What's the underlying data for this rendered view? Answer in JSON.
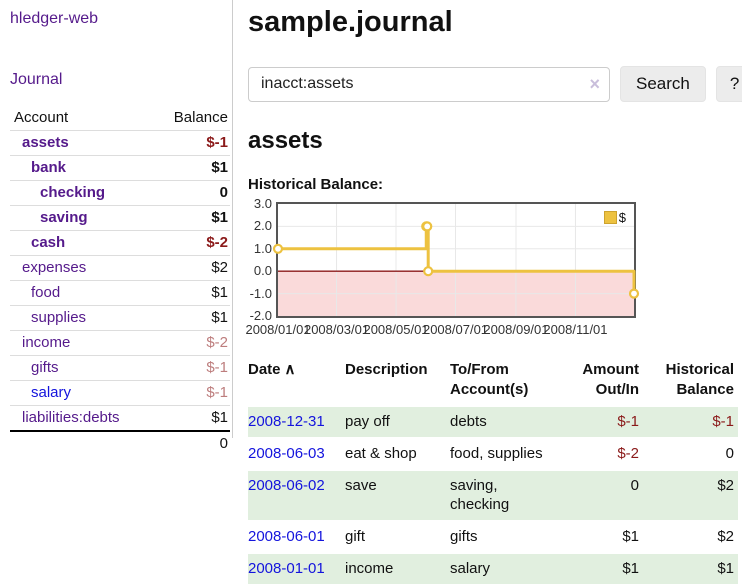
{
  "app": {
    "title": "hledger-web"
  },
  "sidebar": {
    "journal_label": "Journal",
    "accounts_header": {
      "account": "Account",
      "balance": "Balance"
    },
    "accounts": [
      {
        "name": "assets",
        "balance": "$-1",
        "depth": 0,
        "bold": true,
        "amount_class": "neg-strong",
        "link_color": "purple"
      },
      {
        "name": "bank",
        "balance": "$1",
        "depth": 1,
        "bold": true,
        "amount_class": "",
        "link_color": "purple"
      },
      {
        "name": "checking",
        "balance": "0",
        "depth": 2,
        "bold": true,
        "amount_class": "",
        "link_color": "purple"
      },
      {
        "name": "saving",
        "balance": "$1",
        "depth": 2,
        "bold": true,
        "amount_class": "",
        "link_color": "purple"
      },
      {
        "name": "cash",
        "balance": "$-2",
        "depth": 1,
        "bold": true,
        "amount_class": "neg-strong",
        "link_color": "purple"
      },
      {
        "name": "expenses",
        "balance": "$2",
        "depth": 0,
        "bold": false,
        "amount_class": "",
        "link_color": "purple"
      },
      {
        "name": "food",
        "balance": "$1",
        "depth": 1,
        "bold": false,
        "amount_class": "",
        "link_color": "purple"
      },
      {
        "name": "supplies",
        "balance": "$1",
        "depth": 1,
        "bold": false,
        "amount_class": "",
        "link_color": "purple"
      },
      {
        "name": "income",
        "balance": "$-2",
        "depth": 0,
        "bold": false,
        "amount_class": "neg-soft",
        "link_color": "purple"
      },
      {
        "name": "gifts",
        "balance": "$-1",
        "depth": 1,
        "bold": false,
        "amount_class": "neg-soft",
        "link_color": "purple"
      },
      {
        "name": "salary",
        "balance": "$-1",
        "depth": 1,
        "bold": false,
        "amount_class": "neg-soft",
        "link_color": "blue"
      },
      {
        "name": "liabilities:debts",
        "balance": "$1",
        "depth": 0,
        "bold": false,
        "amount_class": "",
        "link_color": "purple"
      }
    ],
    "total": "0"
  },
  "header": {
    "title": "sample.journal"
  },
  "search": {
    "value": "inacct:assets",
    "clear_icon": "×",
    "button_label": "Search",
    "help_label": "?"
  },
  "account_page": {
    "title": "assets",
    "chart_label": "Historical Balance:"
  },
  "chart_data": {
    "type": "line",
    "title": "Historical Balance:",
    "step": true,
    "series": [
      {
        "name": "$",
        "color": "#edc240",
        "points": [
          [
            "2008-01-01",
            1
          ],
          [
            "2008-06-01",
            2
          ],
          [
            "2008-06-02",
            2
          ],
          [
            "2008-06-03",
            0
          ],
          [
            "2008-12-31",
            -1
          ]
        ]
      }
    ],
    "xlim": [
      "2008-01-01",
      "2008-12-31"
    ],
    "ylim": [
      -2,
      3
    ],
    "yticks": [
      3,
      2,
      1,
      0,
      -1,
      -2
    ],
    "ytick_labels": [
      "3.0",
      "2.0",
      "1.0",
      "0.0",
      "-1.0",
      "-2.0"
    ],
    "xticks": [
      "2008/01/01",
      "2008/03/01",
      "2008/05/01",
      "2008/07/01",
      "2008/09/01",
      "2008/11/01"
    ],
    "legend_position": "top-right",
    "legend_label": "$",
    "grid": true,
    "grid_color": "#e8e8e8",
    "negative_fill": "#fadada",
    "zero_line_color": "#8b1a1a"
  },
  "register": {
    "columns": {
      "date": {
        "line1": "Date",
        "sort_icon": "∧"
      },
      "description": {
        "line1": "Description"
      },
      "accounts": {
        "line1": "To/From",
        "line2": "Account(s)"
      },
      "amount": {
        "line1": "Amount",
        "line2": "Out/In"
      },
      "balance": {
        "line1": "Historical",
        "line2": "Balance"
      }
    },
    "rows": [
      {
        "date": "2008-12-31",
        "description": "pay off",
        "accounts": "debts",
        "amount": "$-1",
        "amount_class": "neg-strong",
        "balance": "$-1",
        "balance_class": "neg-strong",
        "stripe": true
      },
      {
        "date": "2008-06-03",
        "description": "eat & shop",
        "accounts": "food, supplies",
        "amount": "$-2",
        "amount_class": "neg-strong",
        "balance": "0",
        "balance_class": "",
        "stripe": false
      },
      {
        "date": "2008-06-02",
        "description": "save",
        "accounts": "saving, checking",
        "amount": "0",
        "amount_class": "",
        "balance": "$2",
        "balance_class": "",
        "stripe": true
      },
      {
        "date": "2008-06-01",
        "description": "gift",
        "accounts": "gifts",
        "amount": "$1",
        "amount_class": "",
        "balance": "$2",
        "balance_class": "",
        "stripe": false
      },
      {
        "date": "2008-01-01",
        "description": "income",
        "accounts": "salary",
        "amount": "$1",
        "amount_class": "",
        "balance": "$1",
        "balance_class": "",
        "stripe": true
      }
    ]
  }
}
